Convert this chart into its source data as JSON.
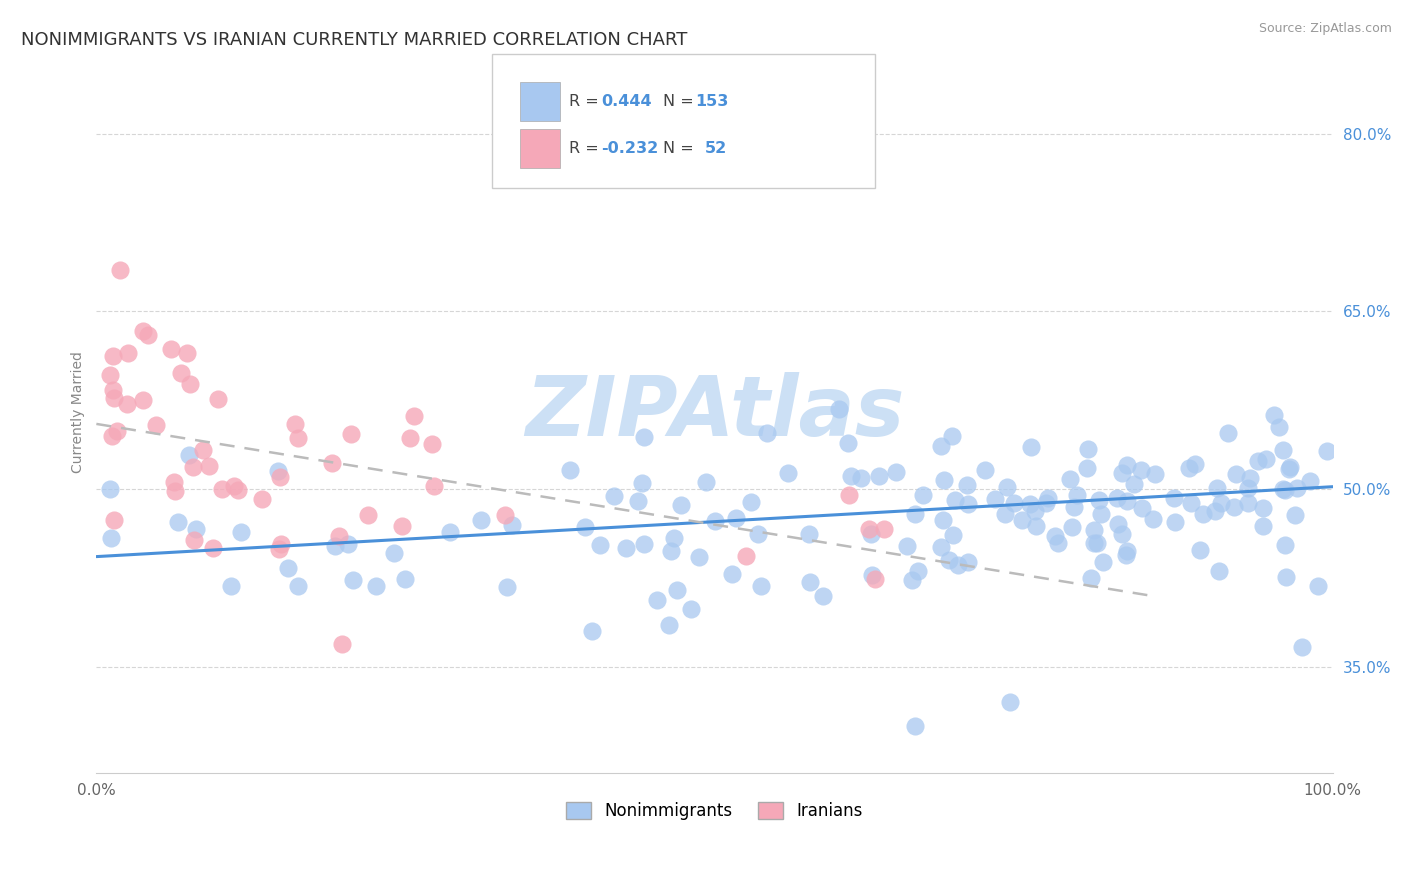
{
  "title": "NONIMMIGRANTS VS IRANIAN CURRENTLY MARRIED CORRELATION CHART",
  "source_text": "Source: ZipAtlas.com",
  "ylabel": "Currently Married",
  "watermark": "ZIPAtlas",
  "xmin": 0.0,
  "xmax": 1.0,
  "ymin": 0.26,
  "ymax": 0.87,
  "yticks": [
    0.35,
    0.5,
    0.65,
    0.8
  ],
  "ytick_labels": [
    "35.0%",
    "50.0%",
    "65.0%",
    "80.0%"
  ],
  "blue_color": "#a8c8f0",
  "blue_line_color": "#4a90d9",
  "pink_color": "#f5a8b8",
  "pink_line_color": "#cc6688",
  "R_blue": 0.444,
  "N_blue": 153,
  "R_pink": -0.232,
  "N_pink": 52,
  "title_fontsize": 13,
  "label_fontsize": 10,
  "tick_fontsize": 11,
  "watermark_fontsize": 60,
  "watermark_color": "#cce0f5",
  "background_color": "#ffffff",
  "grid_color": "#cccccc",
  "blue_trend_start_y": 0.443,
  "blue_trend_end_y": 0.502,
  "pink_trend_start_y": 0.555,
  "pink_trend_end_y": 0.385
}
